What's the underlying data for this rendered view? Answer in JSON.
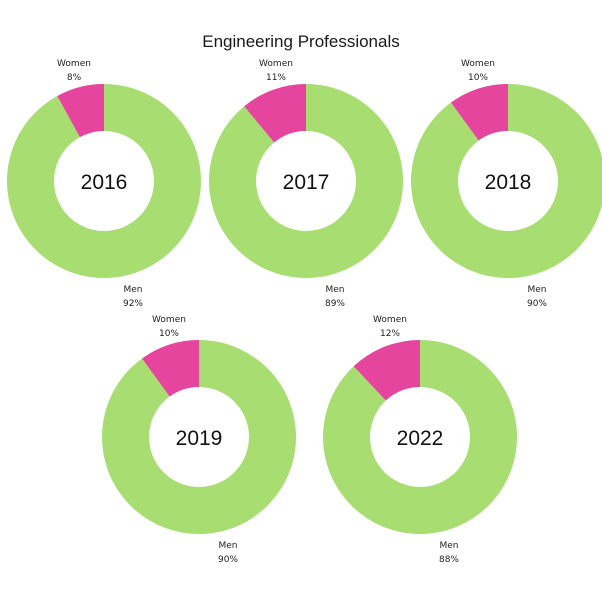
{
  "title": "Engineering Professionals",
  "colors": {
    "men": "#a8dd72",
    "women": "#e6459e"
  },
  "chart_data": [
    {
      "type": "pie",
      "center_label": "2016",
      "slices": [
        {
          "label": "Women",
          "value": 8,
          "value_label": "8%"
        },
        {
          "label": "Men",
          "value": 92,
          "value_label": "92%"
        }
      ]
    },
    {
      "type": "pie",
      "center_label": "2017",
      "slices": [
        {
          "label": "Women",
          "value": 11,
          "value_label": "11%"
        },
        {
          "label": "Men",
          "value": 89,
          "value_label": "89%"
        }
      ]
    },
    {
      "type": "pie",
      "center_label": "2018",
      "slices": [
        {
          "label": "Women",
          "value": 10,
          "value_label": "10%"
        },
        {
          "label": "Men",
          "value": 90,
          "value_label": "90%"
        }
      ]
    },
    {
      "type": "pie",
      "center_label": "2019",
      "slices": [
        {
          "label": "Women",
          "value": 10,
          "value_label": "10%"
        },
        {
          "label": "Men",
          "value": 90,
          "value_label": "90%"
        }
      ]
    },
    {
      "type": "pie",
      "center_label": "2022",
      "slices": [
        {
          "label": "Women",
          "value": 12,
          "value_label": "12%"
        },
        {
          "label": "Men",
          "value": 88,
          "value_label": "88%"
        }
      ]
    }
  ]
}
